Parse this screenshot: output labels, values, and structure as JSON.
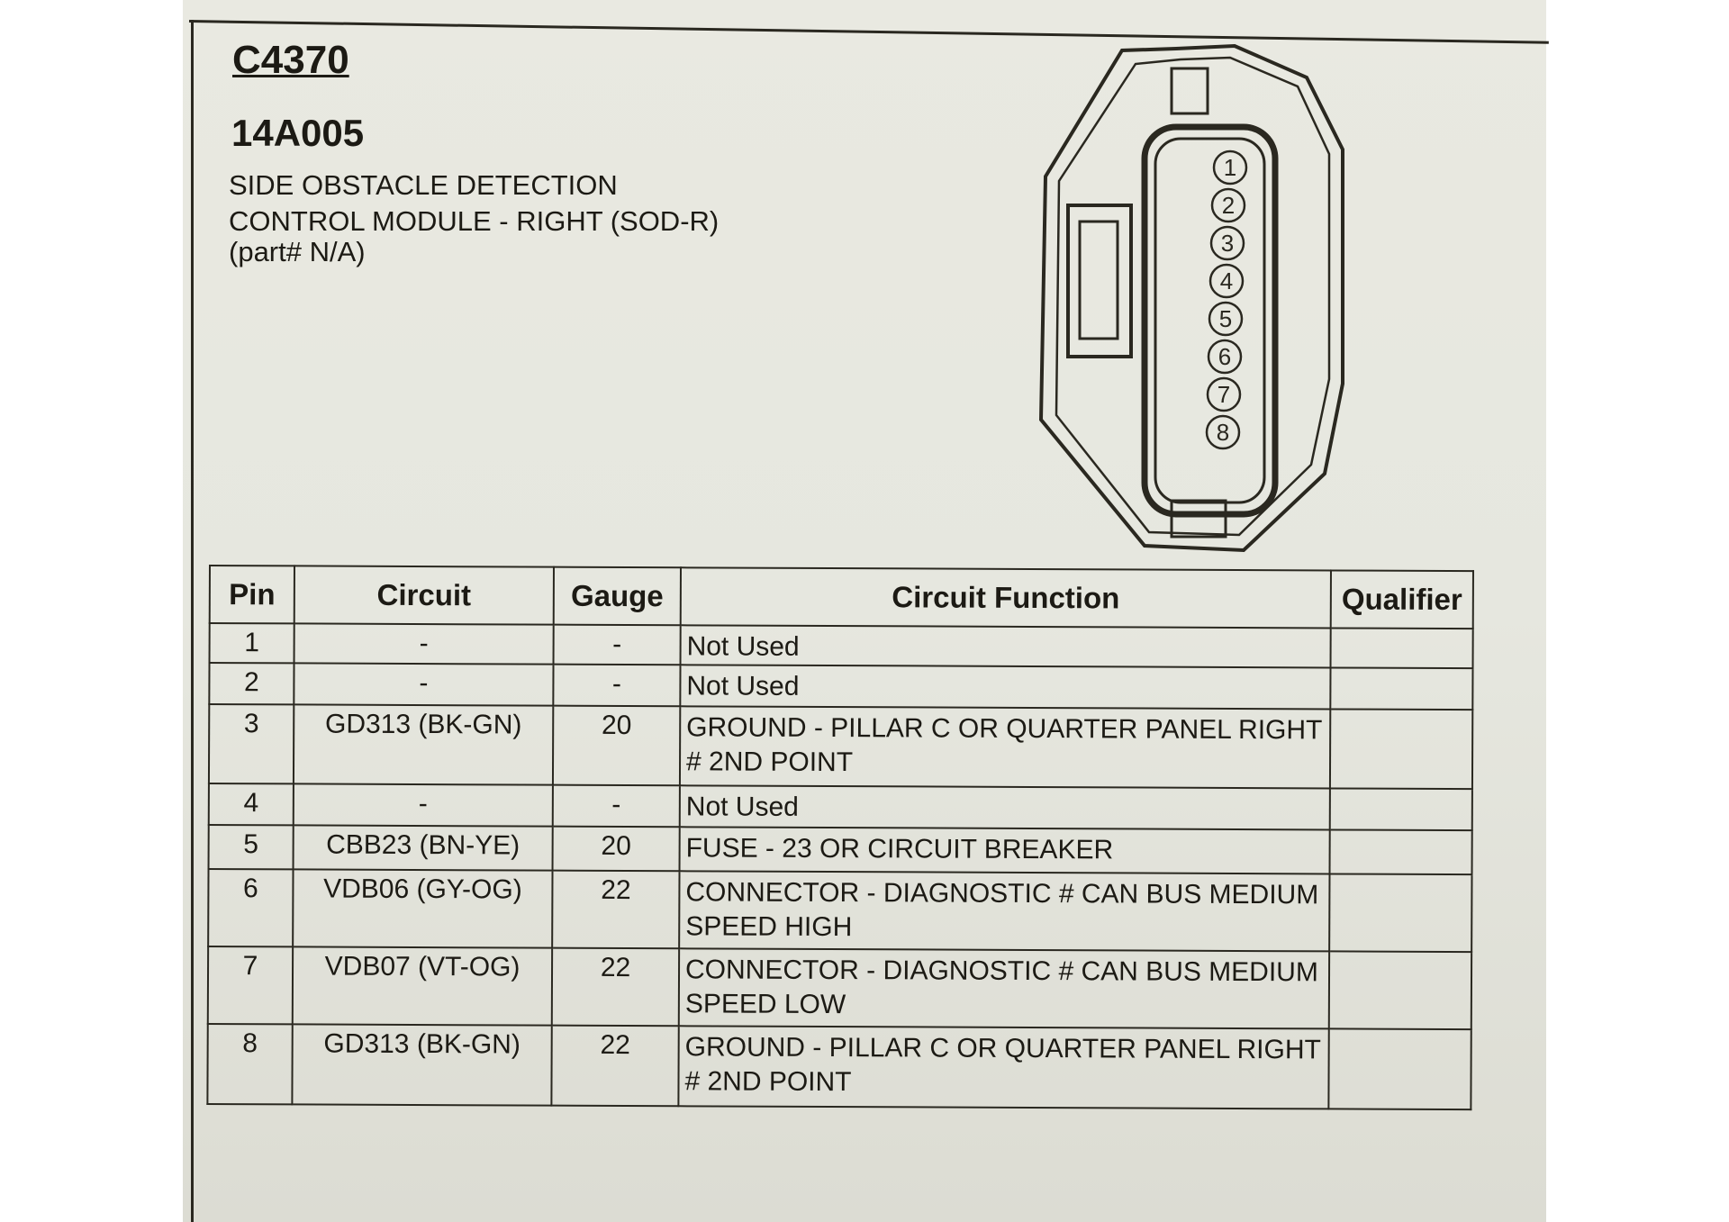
{
  "connector_id": "C4370",
  "component_number": "14A005",
  "description_lines": [
    "SIDE OBSTACLE DETECTION",
    "CONTROL MODULE - RIGHT (SOD-R)",
    "(part# N/A)"
  ],
  "pins_diagram": [
    "1",
    "2",
    "3",
    "4",
    "5",
    "6",
    "7",
    "8"
  ],
  "table": {
    "headers": [
      "Pin",
      "Circuit",
      "Gauge",
      "Circuit Function",
      "Qualifier"
    ],
    "rows": [
      {
        "pin": "1",
        "circuit": "-",
        "gauge": "-",
        "function": "Not Used",
        "qualifier": ""
      },
      {
        "pin": "2",
        "circuit": "-",
        "gauge": "-",
        "function": "Not Used",
        "qualifier": ""
      },
      {
        "pin": "3",
        "circuit": "GD313 (BK-GN)",
        "gauge": "20",
        "function": "GROUND - PILLAR C OR QUARTER PANEL RIGHT # 2ND POINT",
        "qualifier": ""
      },
      {
        "pin": "4",
        "circuit": "-",
        "gauge": "-",
        "function": "Not Used",
        "qualifier": ""
      },
      {
        "pin": "5",
        "circuit": "CBB23 (BN-YE)",
        "gauge": "20",
        "function": "FUSE - 23 OR CIRCUIT BREAKER",
        "qualifier": ""
      },
      {
        "pin": "6",
        "circuit": "VDB06 (GY-OG)",
        "gauge": "22",
        "function": "CONNECTOR - DIAGNOSTIC # CAN BUS MEDIUM SPEED HIGH",
        "qualifier": ""
      },
      {
        "pin": "7",
        "circuit": "VDB07 (VT-OG)",
        "gauge": "22",
        "function": "CONNECTOR - DIAGNOSTIC # CAN BUS MEDIUM SPEED LOW",
        "qualifier": ""
      },
      {
        "pin": "8",
        "circuit": "GD313 (BK-GN)",
        "gauge": "22",
        "function": "GROUND - PILLAR C OR QUARTER PANEL RIGHT # 2ND POINT",
        "qualifier": ""
      }
    ]
  }
}
